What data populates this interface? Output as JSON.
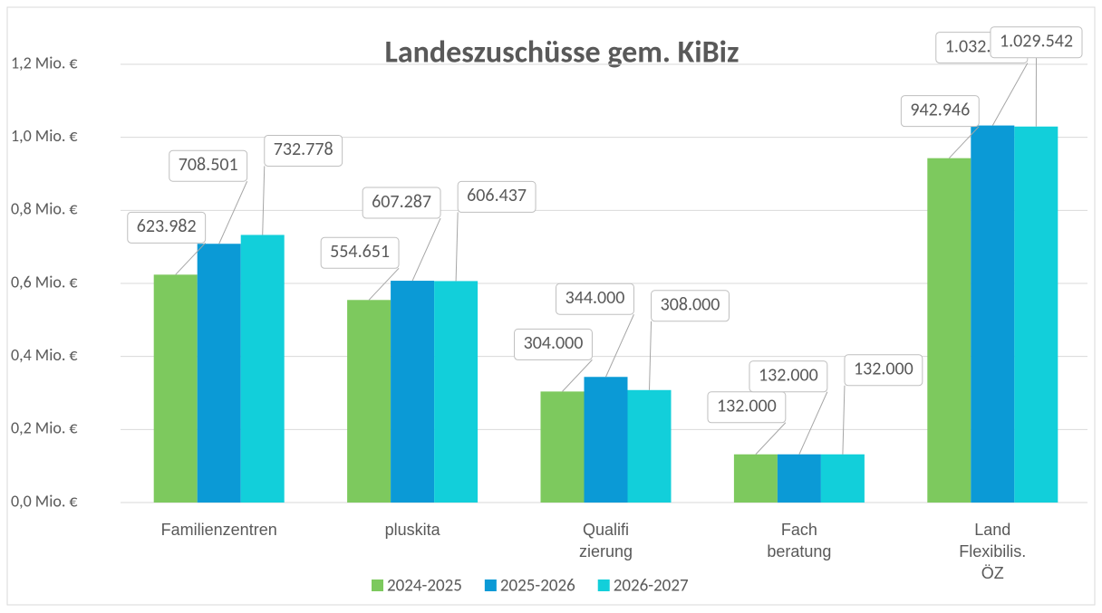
{
  "chart_data": {
    "type": "bar",
    "title": "Landeszuschüsse gem. KiBiz",
    "categories": [
      "Familienzentren",
      "pluskita",
      "Qualifi\nzierung",
      "Fach\nberatung",
      "Land\nFlexibilis.\nÖZ"
    ],
    "series": [
      {
        "name": "2024-2025",
        "color": "#7dc95e",
        "values": [
          623982,
          554651,
          304000,
          132000,
          942946
        ],
        "value_labels": [
          "623.982",
          "554.651",
          "304.000",
          "132.000",
          "942.946"
        ]
      },
      {
        "name": "2025-2026",
        "color": "#0b9ad6",
        "values": [
          708501,
          607287,
          344000,
          132000,
          1032431
        ],
        "value_labels": [
          "708.501",
          "607.287",
          "344.000",
          "132.000",
          "1.032.431"
        ]
      },
      {
        "name": "2026-2027",
        "color": "#12cfda",
        "values": [
          732778,
          606437,
          308000,
          132000,
          1029542
        ],
        "value_labels": [
          "732.778",
          "606.437",
          "308.000",
          "132.000",
          "1.029.542"
        ]
      }
    ],
    "ylim": [
      0,
      1200000
    ],
    "yticks": [
      {
        "value": 0,
        "label": "0,0 Mio. €"
      },
      {
        "value": 200000,
        "label": "0,2 Mio. €"
      },
      {
        "value": 400000,
        "label": "0,4 Mio. €"
      },
      {
        "value": 600000,
        "label": "0,6 Mio. €"
      },
      {
        "value": 800000,
        "label": "0,8 Mio. €"
      },
      {
        "value": 1000000,
        "label": "1,0 Mio. €"
      },
      {
        "value": 1200000,
        "label": "1,2 Mio. €"
      }
    ],
    "grid": true,
    "legend": "bottom"
  }
}
